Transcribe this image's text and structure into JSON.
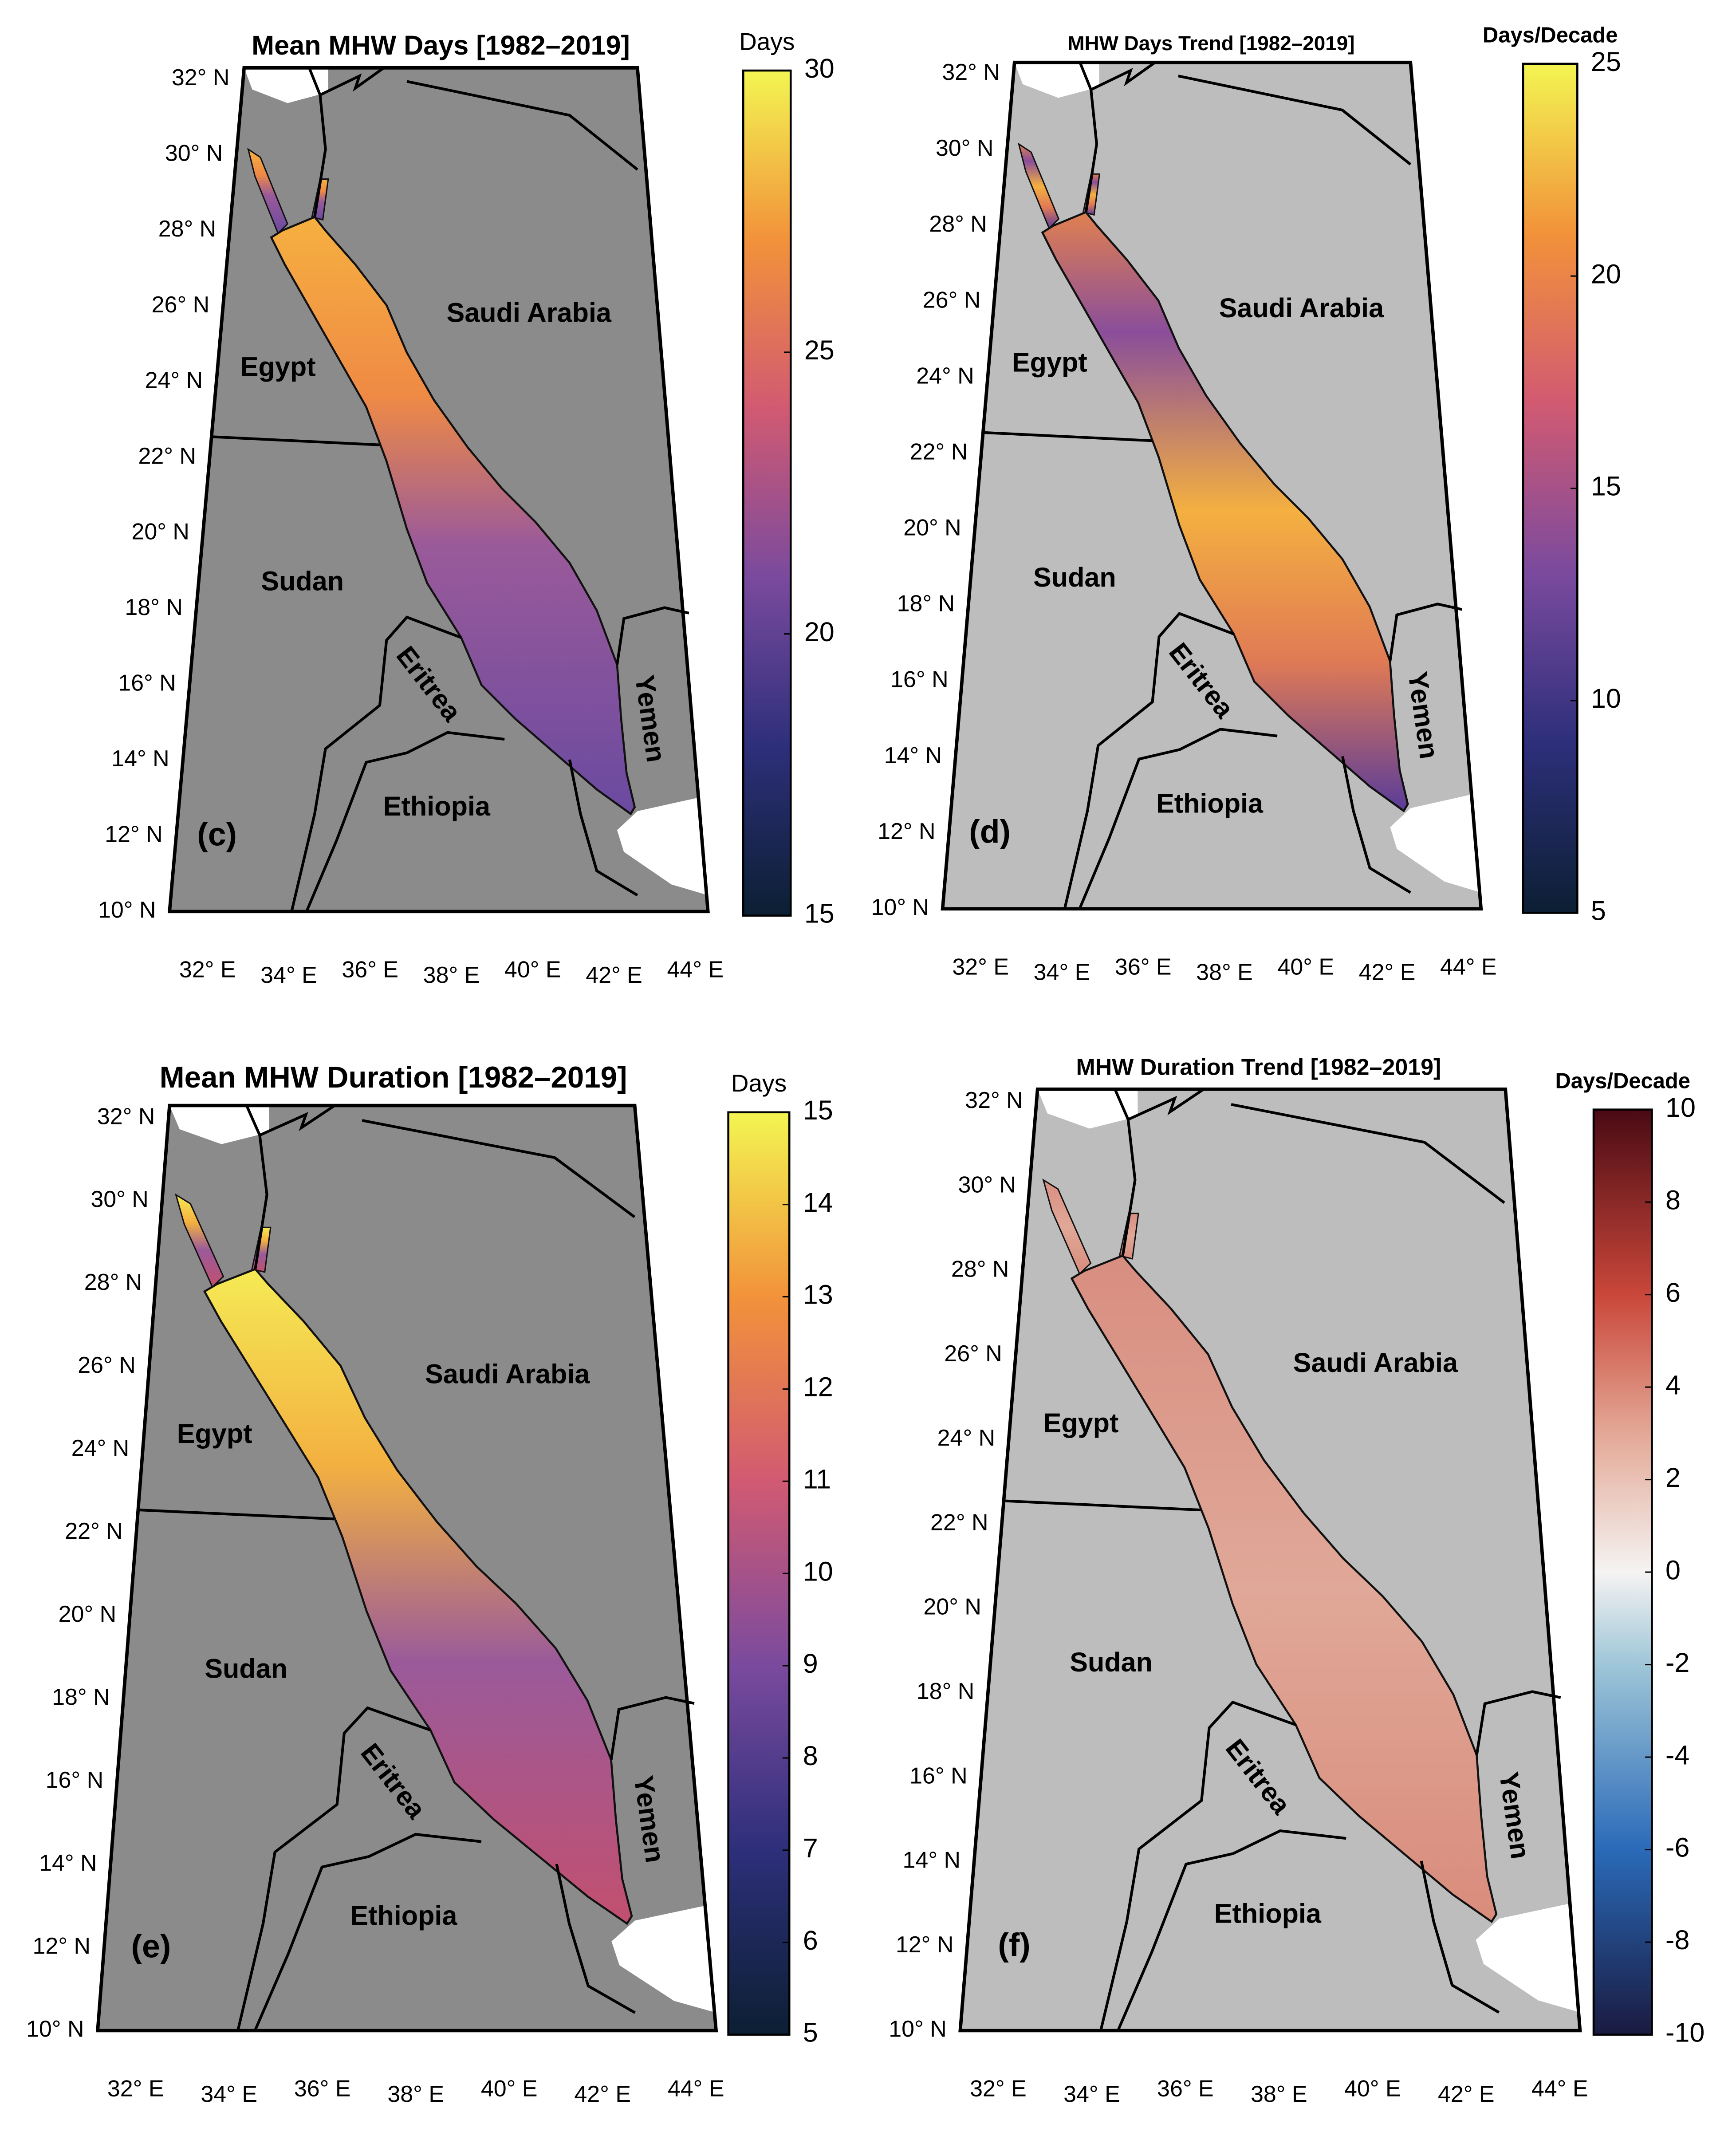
{
  "panels": [
    {
      "title": "Mean MHW Days [1982–2019]",
      "panel_label": "(c)",
      "colorbar": {
        "label": "Days",
        "ticks": [
          "30",
          "25",
          "20",
          "15"
        ]
      },
      "lat_labels": [
        "32° N",
        "30° N",
        "28° N",
        "26° N",
        "24° N",
        "22° N",
        "20° N",
        "18° N",
        "16° N",
        "14° N",
        "12° N",
        "10° N"
      ],
      "lon_labels": [
        "32° E",
        "34° E",
        "36° E",
        "38° E",
        "40° E",
        "42° E",
        "44° E"
      ],
      "countries": [
        "Saudi Arabia",
        "Egypt",
        "Sudan",
        "Eritrea",
        "Yemen",
        "Ethiopia"
      ]
    },
    {
      "title": "MHW Days Trend [1982–2019]",
      "panel_label": "(d)",
      "colorbar": {
        "label": "Days/Decade",
        "ticks": [
          "25",
          "20",
          "15",
          "10",
          "5"
        ]
      },
      "lat_labels": [
        "32° N",
        "30° N",
        "28° N",
        "26° N",
        "24° N",
        "22° N",
        "20° N",
        "18° N",
        "16° N",
        "14° N",
        "12° N",
        "10° N"
      ],
      "lon_labels": [
        "32° E",
        "34° E",
        "36° E",
        "38° E",
        "40° E",
        "42° E",
        "44° E"
      ],
      "countries": [
        "Saudi Arabia",
        "Egypt",
        "Sudan",
        "Eritrea",
        "Yemen",
        "Ethiopia"
      ]
    },
    {
      "title": "Mean MHW Duration [1982–2019]",
      "panel_label": "(e)",
      "colorbar": {
        "label": "Days",
        "ticks": [
          "15",
          "14",
          "13",
          "12",
          "11",
          "10",
          "9",
          "8",
          "7",
          "6",
          "5"
        ]
      },
      "lat_labels": [
        "32° N",
        "30° N",
        "28° N",
        "26° N",
        "24° N",
        "22° N",
        "20° N",
        "18° N",
        "16° N",
        "14° N",
        "12° N",
        "10° N"
      ],
      "lon_labels": [
        "32° E",
        "34° E",
        "36° E",
        "38° E",
        "40° E",
        "42° E",
        "44° E"
      ],
      "countries": [
        "Saudi Arabia",
        "Egypt",
        "Sudan",
        "Eritrea",
        "Yemen",
        "Ethiopia"
      ]
    },
    {
      "title": "MHW Duration Trend [1982–2019]",
      "panel_label": "(f)",
      "colorbar": {
        "label": "Days/Decade",
        "ticks": [
          "10",
          "8",
          "6",
          "4",
          "2",
          "0",
          "-2",
          "-4",
          "-6",
          "-8",
          "-10"
        ]
      },
      "lat_labels": [
        "32° N",
        "30° N",
        "28° N",
        "26° N",
        "24° N",
        "22° N",
        "20° N",
        "18° N",
        "16° N",
        "14° N",
        "12° N",
        "10° N"
      ],
      "lon_labels": [
        "32° E",
        "34° E",
        "36° E",
        "38° E",
        "40° E",
        "42° E",
        "44° E"
      ],
      "countries": [
        "Saudi Arabia",
        "Egypt",
        "Sudan",
        "Eritrea",
        "Yemen",
        "Ethiopia"
      ]
    }
  ]
}
